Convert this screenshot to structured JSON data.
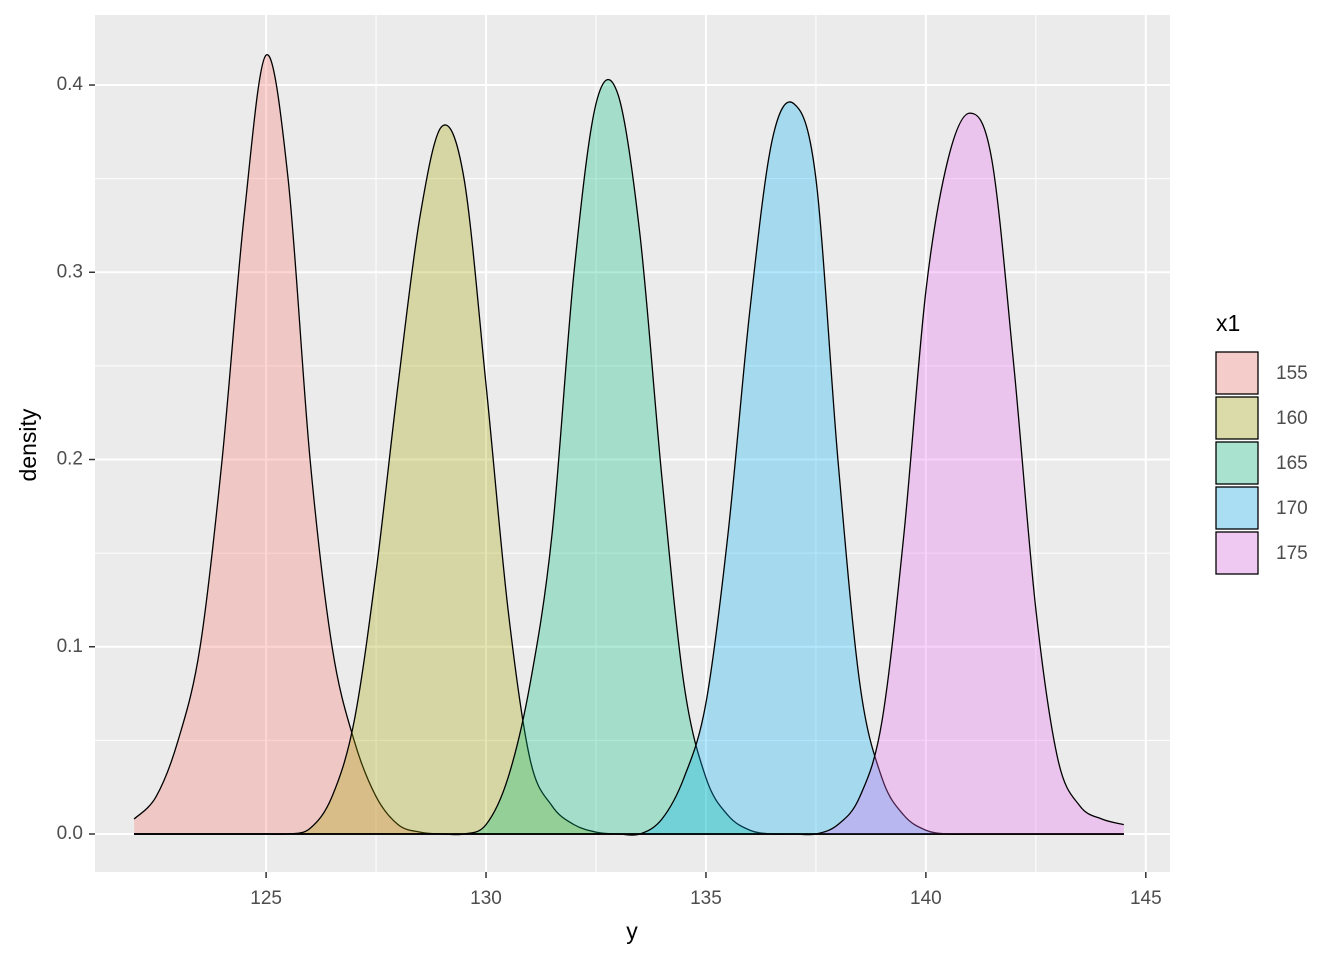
{
  "chart_data": {
    "type": "density",
    "x_label": "y",
    "y_label": "density",
    "legend_title": "x1",
    "legend_position": "right",
    "grid": true,
    "xlim": [
      121.11,
      145.55
    ],
    "ylim": [
      -0.0203,
      0.4374
    ],
    "xticks": [
      125,
      130,
      135,
      140,
      145
    ],
    "yticks": [
      {
        "value": 0,
        "label": "0.0"
      },
      {
        "value": 0.1,
        "label": "0.1"
      },
      {
        "value": 0.2,
        "label": "0.2"
      },
      {
        "value": 0.3,
        "label": "0.3"
      },
      {
        "value": 0.4,
        "label": "0.4"
      }
    ],
    "x": [
      122,
      122.5,
      123,
      123.5,
      124,
      124.5,
      125,
      125.5,
      126,
      126.5,
      127,
      127.5,
      128,
      128.5,
      129,
      129.5,
      130,
      130.5,
      131,
      131.5,
      132,
      132.5,
      133,
      133.5,
      134,
      134.5,
      135,
      135.5,
      136,
      136.5,
      137,
      137.5,
      138,
      138.5,
      139,
      139.5,
      140,
      140.5,
      141,
      141.5,
      142,
      142.5,
      143,
      143.5,
      144,
      144.5
    ],
    "series": [
      {
        "name": "155",
        "color": "#F8766D",
        "values": [
          0.008,
          0.02,
          0.05,
          0.1,
          0.2,
          0.33,
          0.416,
          0.35,
          0.2,
          0.1,
          0.05,
          0.02,
          0.005,
          0.001,
          0,
          0,
          0,
          0,
          0,
          0,
          0,
          0,
          0,
          0,
          0,
          0,
          0,
          0,
          0,
          0,
          0,
          0,
          0,
          0,
          0,
          0,
          0,
          0,
          0,
          0,
          0,
          0,
          0,
          0,
          0,
          0
        ]
      },
      {
        "name": "160",
        "color": "#A3A500",
        "values": [
          0,
          0,
          0,
          0,
          0,
          0,
          0,
          0,
          0.003,
          0.02,
          0.06,
          0.14,
          0.24,
          0.33,
          0.378,
          0.35,
          0.24,
          0.12,
          0.04,
          0.015,
          0.005,
          0.001,
          0,
          0,
          0,
          0,
          0,
          0,
          0,
          0,
          0,
          0,
          0,
          0,
          0,
          0,
          0,
          0,
          0,
          0,
          0,
          0,
          0,
          0,
          0,
          0
        ]
      },
      {
        "name": "165",
        "color": "#00BF7D",
        "values": [
          0,
          0,
          0,
          0,
          0,
          0,
          0,
          0,
          0,
          0,
          0,
          0,
          0,
          0,
          0,
          0,
          0.005,
          0.03,
          0.08,
          0.16,
          0.3,
          0.39,
          0.395,
          0.32,
          0.19,
          0.08,
          0.03,
          0.01,
          0.002,
          0,
          0,
          0,
          0,
          0,
          0,
          0,
          0,
          0,
          0,
          0,
          0,
          0,
          0,
          0,
          0,
          0
        ]
      },
      {
        "name": "170",
        "color": "#00B0F6",
        "values": [
          0,
          0,
          0,
          0,
          0,
          0,
          0,
          0,
          0,
          0,
          0,
          0,
          0,
          0,
          0,
          0,
          0,
          0,
          0,
          0,
          0,
          0,
          0,
          0,
          0.008,
          0.03,
          0.07,
          0.16,
          0.28,
          0.37,
          0.39,
          0.35,
          0.2,
          0.08,
          0.03,
          0.01,
          0.002,
          0,
          0,
          0,
          0,
          0,
          0,
          0,
          0,
          0
        ]
      },
      {
        "name": "175",
        "color": "#E76BF3",
        "values": [
          0,
          0,
          0,
          0,
          0,
          0,
          0,
          0,
          0,
          0,
          0,
          0,
          0,
          0,
          0,
          0,
          0,
          0,
          0,
          0,
          0,
          0,
          0,
          0,
          0,
          0,
          0,
          0,
          0,
          0,
          0,
          0,
          0.005,
          0.02,
          0.06,
          0.16,
          0.29,
          0.36,
          0.385,
          0.36,
          0.25,
          0.12,
          0.04,
          0.015,
          0.008,
          0.005
        ]
      }
    ]
  }
}
